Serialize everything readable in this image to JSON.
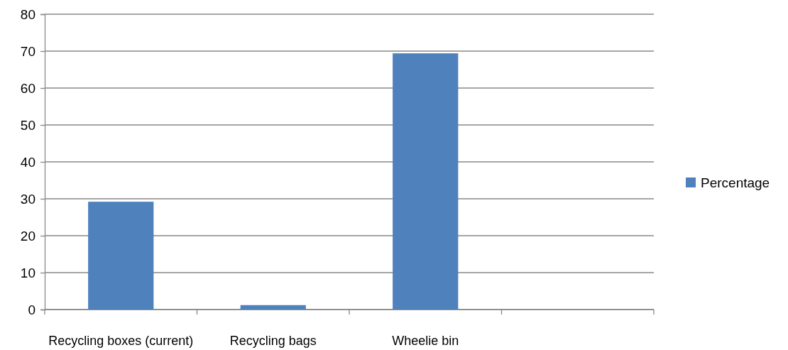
{
  "chart_data": {
    "type": "bar",
    "categories": [
      "Recycling boxes (current)",
      "Recycling bags",
      "Wheelie bin",
      null
    ],
    "series": [
      {
        "name": "Percentage",
        "color": "#4f81bd",
        "values": [
          29.2,
          1.2,
          69.4,
          null
        ]
      }
    ],
    "ylim": [
      0,
      80
    ],
    "yticks": [
      0,
      10,
      20,
      30,
      40,
      50,
      60,
      70,
      80
    ],
    "grid": "y",
    "legend": "right"
  }
}
